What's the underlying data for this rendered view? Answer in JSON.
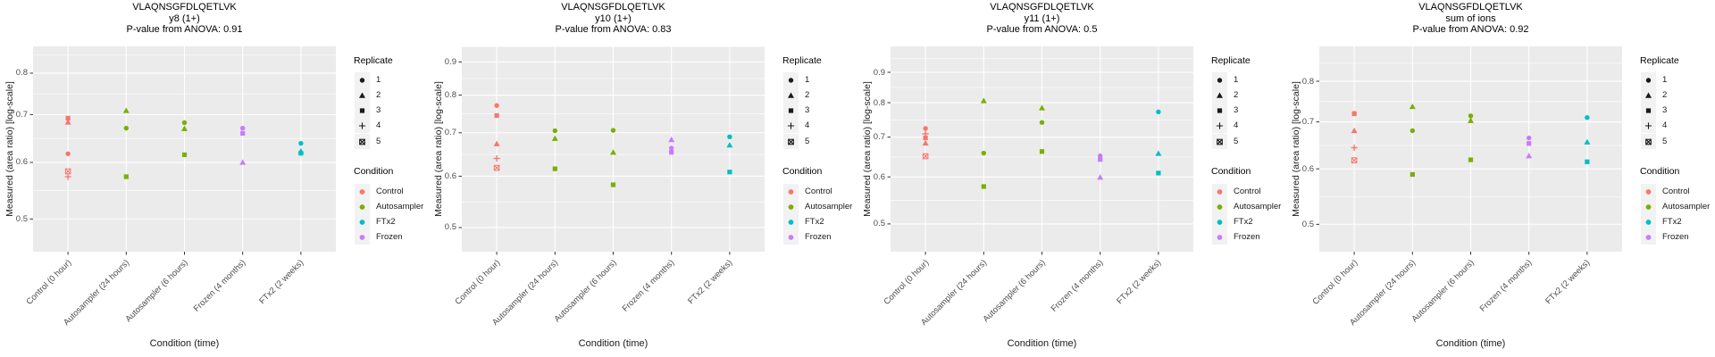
{
  "figure": {
    "y_axis_label": "Measured (area ratio) [log-scale]",
    "x_axis_label": "Condition (time)",
    "categories": [
      "Control (0 hour)",
      "Autosampler (24 hours)",
      "Autosampler (6 hours)",
      "Frozen (4 months)",
      "FTx2 (2 weeks)"
    ],
    "category_conditions": [
      "Control",
      "Autosampler",
      "Autosampler",
      "Frozen",
      "FTx2"
    ],
    "legend": {
      "replicate": {
        "title": "Replicate",
        "items": [
          {
            "label": "1",
            "shape": "circle"
          },
          {
            "label": "2",
            "shape": "triangle"
          },
          {
            "label": "3",
            "shape": "square"
          },
          {
            "label": "4",
            "shape": "plus"
          },
          {
            "label": "5",
            "shape": "square-cross"
          }
        ]
      },
      "condition": {
        "title": "Condition",
        "items": [
          {
            "label": "Control",
            "color": "#F8766D"
          },
          {
            "label": "Autosampler",
            "color": "#7CAE00"
          },
          {
            "label": "FTx2",
            "color": "#00BFC4"
          },
          {
            "label": "Frozen",
            "color": "#C77CFF"
          }
        ]
      }
    },
    "condition_colors": {
      "Control": "#F8766D",
      "Autosampler": "#7CAE00",
      "FTx2": "#00BFC4",
      "Frozen": "#C77CFF"
    },
    "style": {
      "panel_bg": "#EBEBEB",
      "grid_color": "#FFFFFF",
      "tick_color": "#333333",
      "tick_label_color": "#4D4D4D",
      "legend_key_bg": "#F2F2F2",
      "legend_glyph_color": "#1a1a1a"
    }
  },
  "chart_data": [
    {
      "type": "scatter",
      "title": "VLAQNSGFDLQETLVK",
      "subtitle": "y8 (1+)",
      "stat_label": "P-value from ANOVA: 0.91",
      "ylabel": "Measured (area ratio) [log-scale]",
      "xlabel": "Condition (time)",
      "y_scale": "log",
      "ylim": [
        0.45,
        0.872
      ],
      "yticks": [
        0.5,
        0.6,
        0.7,
        0.8
      ],
      "categories": [
        "Control (0 hour)",
        "Autosampler (24 hours)",
        "Autosampler (6 hours)",
        "Frozen (4 months)",
        "FTx2 (2 weeks)"
      ],
      "points": [
        {
          "cat": 0,
          "rep": 5,
          "v": 0.583
        },
        {
          "cat": 0,
          "rep": 4,
          "v": 0.573
        },
        {
          "cat": 0,
          "rep": 3,
          "v": 0.692
        },
        {
          "cat": 0,
          "rep": 2,
          "v": 0.683
        },
        {
          "cat": 0,
          "rep": 1,
          "v": 0.617
        },
        {
          "cat": 1,
          "rep": 3,
          "v": 0.573
        },
        {
          "cat": 1,
          "rep": 2,
          "v": 0.709
        },
        {
          "cat": 1,
          "rep": 1,
          "v": 0.67
        },
        {
          "cat": 2,
          "rep": 3,
          "v": 0.615
        },
        {
          "cat": 2,
          "rep": 2,
          "v": 0.669
        },
        {
          "cat": 2,
          "rep": 1,
          "v": 0.682
        },
        {
          "cat": 3,
          "rep": 3,
          "v": 0.659
        },
        {
          "cat": 3,
          "rep": 2,
          "v": 0.6
        },
        {
          "cat": 3,
          "rep": 1,
          "v": 0.67
        },
        {
          "cat": 4,
          "rep": 3,
          "v": 0.618
        },
        {
          "cat": 4,
          "rep": 2,
          "v": 0.622
        },
        {
          "cat": 4,
          "rep": 1,
          "v": 0.638
        }
      ]
    },
    {
      "type": "scatter",
      "title": "VLAQNSGFDLQETLVK",
      "subtitle": "y10 (1+)",
      "stat_label": "P-value from ANOVA: 0.83",
      "ylabel": "Measured (area ratio) [log-scale]",
      "xlabel": "Condition (time)",
      "y_scale": "log",
      "ylim": [
        0.459,
        0.951
      ],
      "yticks": [
        0.5,
        0.6,
        0.7,
        0.8,
        0.9
      ],
      "categories": [
        "Control (0 hour)",
        "Autosampler (24 hours)",
        "Autosampler (6 hours)",
        "Frozen (4 months)",
        "FTx2 (2 weeks)"
      ],
      "points": [
        {
          "cat": 0,
          "rep": 5,
          "v": 0.618
        },
        {
          "cat": 0,
          "rep": 4,
          "v": 0.639
        },
        {
          "cat": 0,
          "rep": 3,
          "v": 0.744
        },
        {
          "cat": 0,
          "rep": 2,
          "v": 0.673
        },
        {
          "cat": 0,
          "rep": 1,
          "v": 0.771
        },
        {
          "cat": 1,
          "rep": 3,
          "v": 0.616
        },
        {
          "cat": 1,
          "rep": 2,
          "v": 0.686
        },
        {
          "cat": 1,
          "rep": 1,
          "v": 0.705
        },
        {
          "cat": 2,
          "rep": 3,
          "v": 0.582
        },
        {
          "cat": 2,
          "rep": 2,
          "v": 0.653
        },
        {
          "cat": 2,
          "rep": 1,
          "v": 0.706
        },
        {
          "cat": 3,
          "rep": 3,
          "v": 0.653
        },
        {
          "cat": 3,
          "rep": 2,
          "v": 0.683
        },
        {
          "cat": 3,
          "rep": 1,
          "v": 0.663
        },
        {
          "cat": 4,
          "rep": 3,
          "v": 0.609
        },
        {
          "cat": 4,
          "rep": 2,
          "v": 0.67
        },
        {
          "cat": 4,
          "rep": 1,
          "v": 0.69
        }
      ]
    },
    {
      "type": "scatter",
      "title": "VLAQNSGFDLQETLVK",
      "subtitle": "y11 (1+)",
      "stat_label": "P-value from ANOVA: 0.5",
      "ylabel": "Measured (area ratio) [log-scale]",
      "xlabel": "Condition (time)",
      "y_scale": "log",
      "ylim": [
        0.449,
        0.995
      ],
      "yticks": [
        0.5,
        0.6,
        0.7,
        0.8,
        0.9
      ],
      "categories": [
        "Control (0 hour)",
        "Autosampler (24 hours)",
        "Autosampler (6 hours)",
        "Frozen (4 months)",
        "FTx2 (2 weeks)"
      ],
      "points": [
        {
          "cat": 0,
          "rep": 5,
          "v": 0.65
        },
        {
          "cat": 0,
          "rep": 4,
          "v": 0.709
        },
        {
          "cat": 0,
          "rep": 3,
          "v": 0.698
        },
        {
          "cat": 0,
          "rep": 2,
          "v": 0.684
        },
        {
          "cat": 0,
          "rep": 1,
          "v": 0.724
        },
        {
          "cat": 1,
          "rep": 3,
          "v": 0.578
        },
        {
          "cat": 1,
          "rep": 2,
          "v": 0.806
        },
        {
          "cat": 1,
          "rep": 1,
          "v": 0.658
        },
        {
          "cat": 2,
          "rep": 3,
          "v": 0.662
        },
        {
          "cat": 2,
          "rep": 2,
          "v": 0.784
        },
        {
          "cat": 2,
          "rep": 1,
          "v": 0.741
        },
        {
          "cat": 3,
          "rep": 3,
          "v": 0.642
        },
        {
          "cat": 3,
          "rep": 2,
          "v": 0.599
        },
        {
          "cat": 3,
          "rep": 1,
          "v": 0.651
        },
        {
          "cat": 4,
          "rep": 3,
          "v": 0.609
        },
        {
          "cat": 4,
          "rep": 2,
          "v": 0.657
        },
        {
          "cat": 4,
          "rep": 1,
          "v": 0.772
        }
      ]
    },
    {
      "type": "scatter",
      "title": "VLAQNSGFDLQETLVK",
      "subtitle": "sum of ions",
      "stat_label": "P-value from ANOVA: 0.92",
      "ylabel": "Measured (area ratio) [log-scale]",
      "xlabel": "Condition (time)",
      "y_scale": "log",
      "ylim": [
        0.457,
        0.897
      ],
      "yticks": [
        0.5,
        0.6,
        0.7,
        0.8
      ],
      "categories": [
        "Control (0 hour)",
        "Autosampler (24 hours)",
        "Autosampler (6 hours)",
        "Frozen (4 months)",
        "FTx2 (2 weeks)"
      ],
      "points": [
        {
          "cat": 0,
          "rep": 5,
          "v": 0.617
        },
        {
          "cat": 0,
          "rep": 4,
          "v": 0.643
        },
        {
          "cat": 0,
          "rep": 3,
          "v": 0.719
        },
        {
          "cat": 0,
          "rep": 2,
          "v": 0.68
        },
        {
          "cat": 0,
          "rep": 1,
          "v": 0.72
        },
        {
          "cat": 1,
          "rep": 3,
          "v": 0.589
        },
        {
          "cat": 1,
          "rep": 2,
          "v": 0.736
        },
        {
          "cat": 1,
          "rep": 1,
          "v": 0.68
        },
        {
          "cat": 2,
          "rep": 3,
          "v": 0.618
        },
        {
          "cat": 2,
          "rep": 2,
          "v": 0.703
        },
        {
          "cat": 2,
          "rep": 1,
          "v": 0.714
        },
        {
          "cat": 3,
          "rep": 3,
          "v": 0.652
        },
        {
          "cat": 3,
          "rep": 2,
          "v": 0.626
        },
        {
          "cat": 3,
          "rep": 1,
          "v": 0.664
        },
        {
          "cat": 4,
          "rep": 3,
          "v": 0.614
        },
        {
          "cat": 4,
          "rep": 2,
          "v": 0.655
        },
        {
          "cat": 4,
          "rep": 1,
          "v": 0.71
        }
      ]
    }
  ]
}
